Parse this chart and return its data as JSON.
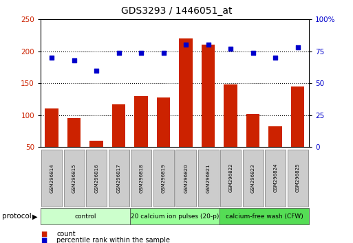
{
  "title": "GDS3293 / 1446051_at",
  "samples": [
    "GSM296814",
    "GSM296815",
    "GSM296816",
    "GSM296817",
    "GSM296818",
    "GSM296819",
    "GSM296820",
    "GSM296821",
    "GSM296822",
    "GSM296823",
    "GSM296824",
    "GSM296825"
  ],
  "counts": [
    110,
    95,
    60,
    117,
    130,
    128,
    220,
    210,
    148,
    102,
    83,
    145
  ],
  "percentiles": [
    70,
    68,
    60,
    74,
    74,
    74,
    80,
    80,
    77,
    74,
    70,
    78
  ],
  "groups": [
    {
      "label": "control",
      "start": 0,
      "end": 4,
      "color": "#ccffcc"
    },
    {
      "label": "20 calcium ion pulses (20-p)",
      "start": 4,
      "end": 8,
      "color": "#99ff99"
    },
    {
      "label": "calcium-free wash (CFW)",
      "start": 8,
      "end": 12,
      "color": "#55dd55"
    }
  ],
  "ylim_left": [
    50,
    250
  ],
  "ylim_right": [
    0,
    100
  ],
  "yticks_left": [
    50,
    100,
    150,
    200,
    250
  ],
  "yticks_right": [
    0,
    25,
    50,
    75,
    100
  ],
  "yticklabels_right": [
    "0",
    "25",
    "50",
    "75",
    "100%"
  ],
  "bar_color": "#cc2200",
  "dot_color": "#0000cc",
  "legend_count_label": "count",
  "legend_pct_label": "percentile rank within the sample",
  "protocol_label": "protocol"
}
